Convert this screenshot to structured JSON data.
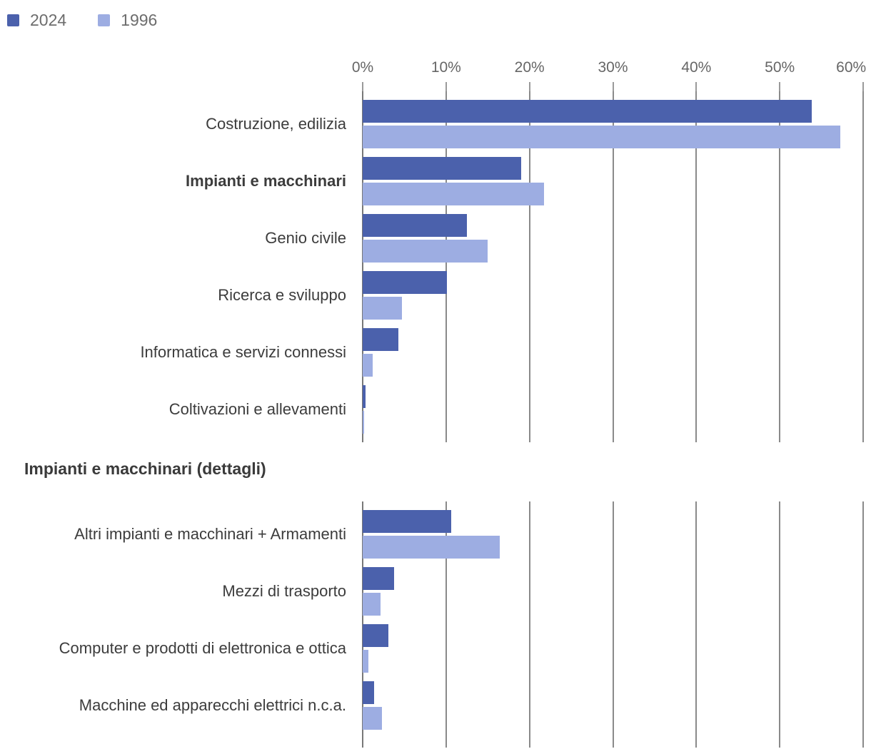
{
  "legend": [
    {
      "label": "2024",
      "color": "#4b61ac"
    },
    {
      "label": "1996",
      "color": "#9dade2"
    }
  ],
  "colors": {
    "series_2024": "#4b61ac",
    "series_1996": "#9dade2",
    "gridline": "#8a8a8a",
    "axis_text": "#666666",
    "category_text": "#3c3c3c",
    "background": "#ffffff"
  },
  "chart_data": [
    {
      "type": "bar",
      "orientation": "horizontal",
      "title": "",
      "categories": [
        "Costruzione, edilizia",
        "Impianti e macchinari",
        "Genio civile",
        "Ricerca e sviluppo",
        "Informatica e servizi connessi",
        "Coltivazioni e allevamenti"
      ],
      "bold_category_indices": [
        1
      ],
      "series": [
        {
          "name": "2024",
          "color": "#4b61ac",
          "values": [
            53.8,
            19.0,
            12.5,
            10.1,
            4.3,
            0.3
          ]
        },
        {
          "name": "1996",
          "color": "#9dade2",
          "values": [
            57.3,
            21.7,
            15.0,
            4.7,
            1.2,
            0.2
          ]
        }
      ],
      "xlim": [
        0,
        60
      ],
      "x_ticks": [
        "0%",
        "10%",
        "20%",
        "30%",
        "40%",
        "50%",
        "60%"
      ],
      "grid": true,
      "axis_position": "top",
      "legend_position": "top-left"
    },
    {
      "type": "bar",
      "orientation": "horizontal",
      "title": "Impianti e macchinari (dettagli)",
      "categories": [
        "Altri impianti e macchinari + Armamenti",
        "Mezzi di trasporto",
        "Computer e prodotti di elettronica e ottica",
        "Macchine ed apparecchi elettrici n.c.a."
      ],
      "bold_category_indices": [],
      "series": [
        {
          "name": "2024",
          "color": "#4b61ac",
          "values": [
            10.6,
            3.8,
            3.1,
            1.4
          ]
        },
        {
          "name": "1996",
          "color": "#9dade2",
          "values": [
            16.4,
            2.1,
            0.7,
            2.3
          ]
        }
      ],
      "xlim": [
        0,
        60
      ],
      "x_ticks": [],
      "grid": true,
      "axis_position": "none"
    }
  ]
}
